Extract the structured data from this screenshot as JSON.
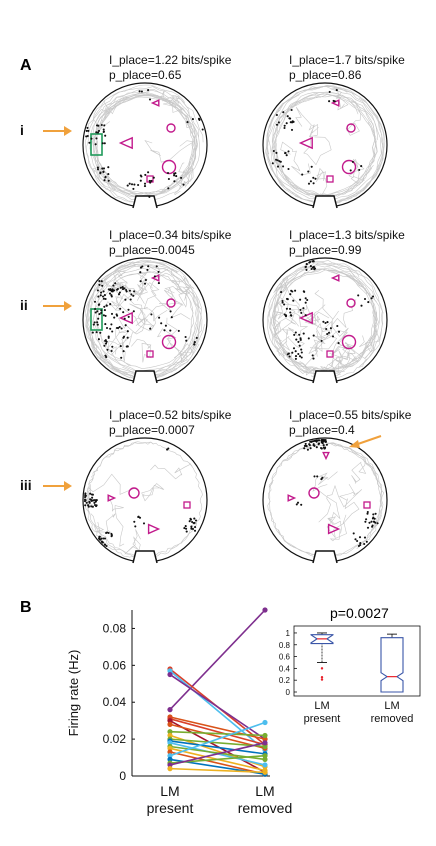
{
  "panel_a": {
    "label": "A",
    "rows": [
      {
        "roman": "i",
        "arrow": true,
        "cells": [
          {
            "info": "I_place=1.22 bits/spike",
            "p": "p_place=0.65",
            "has_rect": true
          },
          {
            "info": "I_place=1.7 bits/spike",
            "p": "p_place=0.86",
            "has_rect": false
          }
        ]
      },
      {
        "roman": "ii",
        "arrow": true,
        "cells": [
          {
            "info": "I_place=0.34 bits/spike",
            "p": "p_place=0.0045",
            "has_rect": true
          },
          {
            "info": "I_place=1.3 bits/spike",
            "p": "p_place=0.99",
            "has_rect": false
          }
        ]
      },
      {
        "roman": "iii",
        "arrow": true,
        "cells": [
          {
            "info": "I_place=0.52 bits/spike",
            "p": "p_place=0.0007",
            "has_rect": false
          },
          {
            "info": "I_place=0.55 bits/spike",
            "p": "p_place=0.4",
            "has_rect": false,
            "arrow_tr": true
          }
        ]
      }
    ]
  },
  "panel_b": {
    "label": "B",
    "pvalue": "p=0.0027"
  },
  "chart_data": [
    {
      "type": "line",
      "ylabel": "Firing rate (Hz)",
      "categories": [
        "LM present",
        "LM removed"
      ],
      "category_lines": [
        [
          "LM",
          "present"
        ],
        [
          "LM",
          "removed"
        ]
      ],
      "yticks": [
        "0",
        "0.02",
        "0.04",
        "0.06",
        "0.08"
      ],
      "ylim": [
        0,
        0.09
      ],
      "series": [
        {
          "values": [
            0.036,
            0.09
          ],
          "color": "#7e2f8e"
        },
        {
          "values": [
            0.058,
            0.017
          ],
          "color": "#d9412b"
        },
        {
          "values": [
            0.057,
            0.014
          ],
          "color": "#4dbeee"
        },
        {
          "values": [
            0.055,
            0.02
          ],
          "color": "#7e2f8e"
        },
        {
          "values": [
            0.032,
            0.02
          ],
          "color": "#d95319"
        },
        {
          "values": [
            0.031,
            0.017
          ],
          "color": "#d9412b"
        },
        {
          "values": [
            0.03,
            0.002
          ],
          "color": "#a2142f"
        },
        {
          "values": [
            0.028,
            0.015
          ],
          "color": "#d95319"
        },
        {
          "values": [
            0.024,
            0.022
          ],
          "color": "#77ac30"
        },
        {
          "values": [
            0.022,
            0.005
          ],
          "color": "#edb120"
        },
        {
          "values": [
            0.02,
            0.016
          ],
          "color": "#77ac30"
        },
        {
          "values": [
            0.019,
            0.012
          ],
          "color": "#0072bd"
        },
        {
          "values": [
            0.018,
            0.006
          ],
          "color": "#4dbeee"
        },
        {
          "values": [
            0.016,
            0.009
          ],
          "color": "#77ac30"
        },
        {
          "values": [
            0.015,
            0.003
          ],
          "color": "#edb120"
        },
        {
          "values": [
            0.013,
            0.001
          ],
          "color": "#d95319"
        },
        {
          "values": [
            0.011,
            0.029
          ],
          "color": "#4dbeee"
        },
        {
          "values": [
            0.009,
            0.001
          ],
          "color": "#0072bd"
        },
        {
          "values": [
            0.007,
            0.011
          ],
          "color": "#77ac30"
        },
        {
          "values": [
            0.006,
            0.018
          ],
          "color": "#7e2f8e"
        },
        {
          "values": [
            0.004,
            0.002
          ],
          "color": "#edb120"
        }
      ]
    },
    {
      "type": "box",
      "categories": [
        "LM present",
        "LM removed"
      ],
      "category_lines": [
        [
          "LM",
          "present"
        ],
        [
          "LM",
          "removed"
        ]
      ],
      "yticks": [
        "0",
        "0.2",
        "0.4",
        "0.6",
        "0.8",
        "1"
      ],
      "ylim": [
        0,
        1.05
      ],
      "boxes": [
        {
          "min": 0.5,
          "q1": 0.82,
          "median": 0.9,
          "q3": 0.97,
          "max": 1.0,
          "outliers": [
            0.4,
            0.25,
            0.21
          ]
        },
        {
          "min": 0.0,
          "q1": 0.0,
          "median": 0.26,
          "q3": 0.92,
          "max": 0.98,
          "outliers": []
        }
      ]
    }
  ],
  "colors": {
    "trajectory": "#c8c8c8",
    "spike": "#111111",
    "landmark": "#c21a8c",
    "removed_landmark": "#1f9a5a",
    "arrow": "#f0a13c",
    "box": "#3a56a8",
    "median": "#e8232c"
  }
}
